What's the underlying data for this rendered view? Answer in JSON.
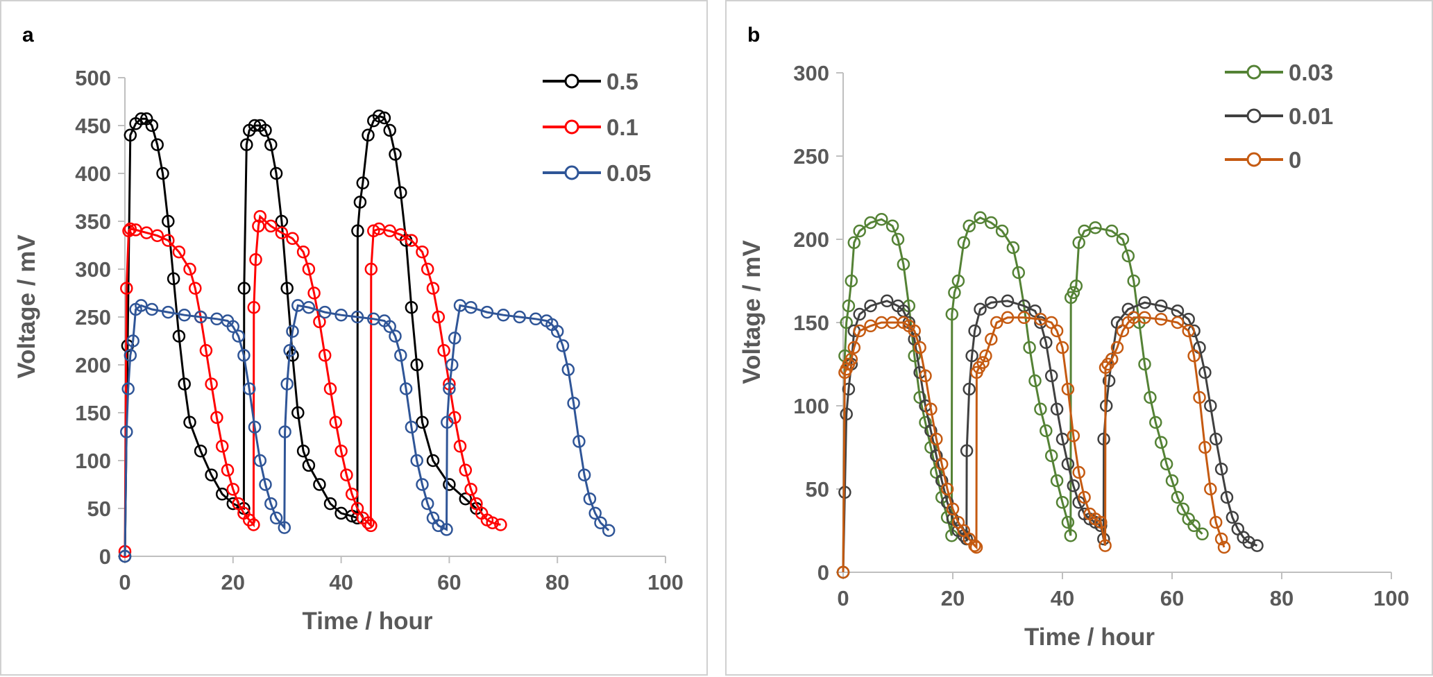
{
  "chart_data": [
    {
      "type": "line",
      "panel_label": "a",
      "xlabel": "Time / hour",
      "ylabel": "Voltage / mV",
      "xlim": [
        0,
        100
      ],
      "ylim": [
        0,
        500
      ],
      "xticks": [
        "0",
        "20",
        "40",
        "60",
        "80",
        "100"
      ],
      "yticks": [
        "0",
        "50",
        "100",
        "150",
        "200",
        "250",
        "300",
        "350",
        "400",
        "450",
        "500"
      ],
      "legend_position": "top-right",
      "series": [
        {
          "name": "0.5",
          "color": "#000000",
          "marker": "open-circle",
          "x": [
            0,
            0.5,
            1,
            2,
            3,
            4,
            5,
            6,
            7,
            8,
            9,
            10,
            11,
            12,
            14,
            16,
            18,
            20,
            22,
            22.05,
            22.5,
            23,
            24,
            25,
            26,
            27,
            28,
            29,
            30,
            31,
            32,
            33,
            34,
            36,
            38,
            40,
            42,
            43,
            43.05,
            43.5,
            44,
            45,
            46,
            47,
            48,
            49,
            50,
            51,
            52,
            53,
            54,
            55,
            57,
            60,
            63,
            65
          ],
          "y": [
            0,
            220,
            440,
            452,
            457,
            457,
            450,
            430,
            400,
            350,
            290,
            230,
            180,
            140,
            110,
            85,
            65,
            55,
            50,
            280,
            430,
            445,
            450,
            450,
            445,
            430,
            400,
            350,
            280,
            210,
            150,
            110,
            95,
            75,
            55,
            45,
            42,
            40,
            340,
            370,
            390,
            440,
            455,
            460,
            458,
            445,
            420,
            380,
            330,
            260,
            200,
            140,
            100,
            75,
            60,
            50
          ]
        },
        {
          "name": "0.1",
          "color": "#ff0000",
          "marker": "open-circle",
          "x": [
            0,
            0.3,
            0.7,
            1,
            2,
            4,
            6,
            8,
            10,
            12,
            13,
            14,
            15,
            16,
            17,
            18,
            19,
            20,
            21,
            22,
            23,
            23.8,
            23.85,
            24.2,
            24.7,
            25,
            27,
            29,
            31,
            33,
            34,
            35,
            36,
            37,
            38,
            39,
            40,
            41,
            42,
            43,
            44,
            45,
            45.5,
            45.55,
            46,
            47,
            49,
            51,
            53,
            55,
            56,
            57,
            58,
            59,
            60,
            61,
            62,
            63,
            64,
            65,
            66,
            67,
            68,
            69.5
          ],
          "y": [
            5,
            280,
            340,
            342,
            341,
            338,
            335,
            330,
            318,
            300,
            280,
            250,
            215,
            180,
            145,
            115,
            90,
            70,
            55,
            45,
            38,
            33,
            260,
            310,
            345,
            355,
            345,
            338,
            332,
            318,
            300,
            275,
            245,
            210,
            175,
            140,
            110,
            85,
            65,
            50,
            40,
            35,
            32,
            300,
            340,
            342,
            340,
            336,
            330,
            318,
            300,
            280,
            250,
            215,
            180,
            145,
            115,
            90,
            70,
            55,
            45,
            38,
            35,
            33
          ]
        },
        {
          "name": "0.05",
          "color": "#2f5597",
          "marker": "open-circle",
          "x": [
            0,
            0.3,
            0.6,
            1,
            1.5,
            2,
            3,
            5,
            8,
            11,
            14,
            17,
            19,
            20,
            21,
            22,
            23,
            24,
            25,
            26,
            27,
            28,
            29.5,
            29.6,
            30,
            30.5,
            31,
            32,
            34,
            37,
            40,
            43,
            46,
            48,
            49,
            50,
            51,
            52,
            53,
            54,
            55,
            56,
            57,
            58,
            59.5,
            59.6,
            60,
            60.5,
            61,
            62,
            64,
            67,
            70,
            73,
            76,
            78,
            79,
            80,
            81,
            82,
            83,
            84,
            85,
            86,
            87,
            88,
            89.5
          ],
          "y": [
            0,
            130,
            175,
            210,
            225,
            258,
            262,
            258,
            255,
            252,
            250,
            248,
            246,
            240,
            230,
            210,
            175,
            135,
            100,
            75,
            55,
            40,
            30,
            130,
            180,
            215,
            235,
            262,
            260,
            255,
            252,
            250,
            248,
            246,
            240,
            230,
            210,
            175,
            135,
            100,
            75,
            55,
            40,
            32,
            28,
            140,
            175,
            200,
            228,
            262,
            260,
            255,
            252,
            250,
            248,
            246,
            242,
            235,
            220,
            195,
            160,
            120,
            85,
            60,
            45,
            35,
            27
          ]
        }
      ]
    },
    {
      "type": "line",
      "panel_label": "b",
      "xlabel": "Time / hour",
      "ylabel": "Voltage / mV",
      "xlim": [
        0,
        100
      ],
      "ylim": [
        0,
        300
      ],
      "xticks": [
        "0",
        "20",
        "40",
        "60",
        "80",
        "100"
      ],
      "yticks": [
        "0",
        "50",
        "100",
        "150",
        "200",
        "250",
        "300"
      ],
      "legend_position": "top-right",
      "series": [
        {
          "name": "0.03",
          "color": "#548235",
          "marker": "open-circle",
          "x": [
            0,
            0.3,
            0.6,
            1,
            1.5,
            2,
            3,
            5,
            7,
            9,
            10,
            11,
            12,
            13,
            14,
            15,
            16,
            17,
            18,
            19,
            19.8,
            19.85,
            20.3,
            21,
            22,
            23,
            25,
            27,
            29,
            31,
            32,
            33,
            34,
            35,
            36,
            37,
            38,
            39,
            40,
            41,
            41.5,
            41.55,
            42,
            42.5,
            43,
            44,
            46,
            49,
            51,
            52,
            53,
            54,
            55,
            56,
            57,
            58,
            59,
            60,
            61,
            62,
            63,
            64,
            65.5
          ],
          "y": [
            0,
            130,
            150,
            160,
            175,
            198,
            205,
            210,
            212,
            208,
            200,
            185,
            160,
            130,
            105,
            90,
            75,
            60,
            45,
            33,
            22,
            155,
            168,
            175,
            198,
            208,
            213,
            210,
            205,
            195,
            180,
            160,
            135,
            115,
            98,
            85,
            70,
            55,
            42,
            30,
            22,
            165,
            168,
            172,
            198,
            205,
            207,
            205,
            200,
            190,
            175,
            150,
            125,
            105,
            90,
            78,
            65,
            55,
            45,
            38,
            32,
            28,
            23
          ]
        },
        {
          "name": "0.01",
          "color": "#404040",
          "marker": "open-circle",
          "x": [
            0,
            0.3,
            0.6,
            1,
            1.5,
            2,
            3,
            5,
            8,
            10,
            11,
            12,
            13,
            14,
            15,
            16,
            17,
            18,
            19,
            20,
            21,
            22,
            22.5,
            22.55,
            23,
            23.5,
            24,
            25,
            27,
            30,
            33,
            35,
            36,
            37,
            38,
            39,
            40,
            41,
            42,
            43,
            44,
            45,
            46,
            47,
            47.5,
            47.55,
            48,
            48.5,
            49,
            50,
            52,
            55,
            58,
            61,
            63,
            64,
            65,
            66,
            67,
            68,
            69,
            70,
            71,
            72,
            73,
            74,
            75.5
          ],
          "y": [
            0,
            48,
            95,
            110,
            125,
            145,
            155,
            160,
            163,
            160,
            157,
            150,
            140,
            120,
            100,
            85,
            70,
            55,
            42,
            32,
            25,
            22,
            20,
            73,
            110,
            130,
            145,
            158,
            162,
            163,
            160,
            157,
            150,
            138,
            118,
            98,
            80,
            65,
            52,
            42,
            35,
            32,
            30,
            28,
            20,
            80,
            100,
            115,
            128,
            150,
            158,
            162,
            160,
            157,
            152,
            145,
            135,
            120,
            100,
            80,
            62,
            45,
            33,
            26,
            21,
            18,
            16
          ]
        },
        {
          "name": "0",
          "color": "#c55a11",
          "marker": "open-circle",
          "x": [
            0,
            0.3,
            0.6,
            1,
            1.5,
            2,
            3,
            5,
            7,
            9,
            11,
            12,
            13,
            14,
            15,
            16,
            17,
            18,
            19,
            20,
            21,
            22,
            23,
            24,
            24.3,
            24.35,
            24.8,
            25.5,
            26,
            27,
            28,
            30,
            33,
            36,
            38,
            39,
            40,
            41,
            42,
            43,
            44,
            45,
            46,
            47,
            47.8,
            47.85,
            48.3,
            49,
            50,
            51,
            52,
            53,
            55,
            58,
            61,
            63,
            64,
            65,
            66,
            67,
            68,
            69,
            69.5
          ],
          "y": [
            0,
            120,
            122,
            125,
            128,
            135,
            145,
            148,
            150,
            150,
            150,
            148,
            145,
            135,
            118,
            98,
            80,
            65,
            50,
            38,
            30,
            25,
            20,
            16,
            15,
            120,
            123,
            126,
            130,
            140,
            150,
            153,
            153,
            152,
            150,
            145,
            135,
            110,
            82,
            60,
            45,
            35,
            32,
            30,
            16,
            123,
            125,
            128,
            135,
            145,
            150,
            153,
            153,
            152,
            150,
            145,
            130,
            105,
            75,
            50,
            30,
            20,
            15
          ]
        }
      ]
    }
  ]
}
